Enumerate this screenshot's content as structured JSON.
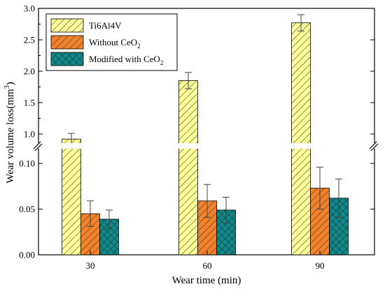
{
  "chart_data": {
    "type": "bar",
    "title": "",
    "xlabel": "Wear time (min)",
    "ylabel": "Wear volume loss(mm",
    "ylabel_sup": "3",
    "ylabel_end": ")",
    "categories": [
      "30",
      "60",
      "90"
    ],
    "y_axis_break": {
      "lower_range": [
        0,
        0.12
      ],
      "upper_range": [
        0.8,
        3.0
      ]
    },
    "lower_ticks": [
      "0.00",
      "0.05",
      "0.10"
    ],
    "upper_ticks": [
      "1.0",
      "1.5",
      "2.0",
      "2.5",
      "3.0"
    ],
    "legend_position": "top-left",
    "series": [
      {
        "name": "Ti6Al4V",
        "name_main": "Ti6Al4V",
        "name_sub": "",
        "values": [
          0.92,
          1.85,
          2.77
        ],
        "errors": [
          0.09,
          0.13,
          0.13
        ],
        "fill": "#ffff99",
        "pattern": "diagonal"
      },
      {
        "name": "Without CeO2",
        "name_main": "Without CeO",
        "name_sub": "2",
        "values": [
          0.045,
          0.059,
          0.073
        ],
        "errors": [
          0.014,
          0.018,
          0.023
        ],
        "fill": "#f4822a",
        "pattern": "diagonal"
      },
      {
        "name": "Modified with CeO2",
        "name_main": "Modified with CeO",
        "name_sub": "2",
        "values": [
          0.039,
          0.049,
          0.062
        ],
        "errors": [
          0.01,
          0.014,
          0.021
        ],
        "fill": "#0f8a8a",
        "pattern": "crosshatch"
      }
    ]
  }
}
